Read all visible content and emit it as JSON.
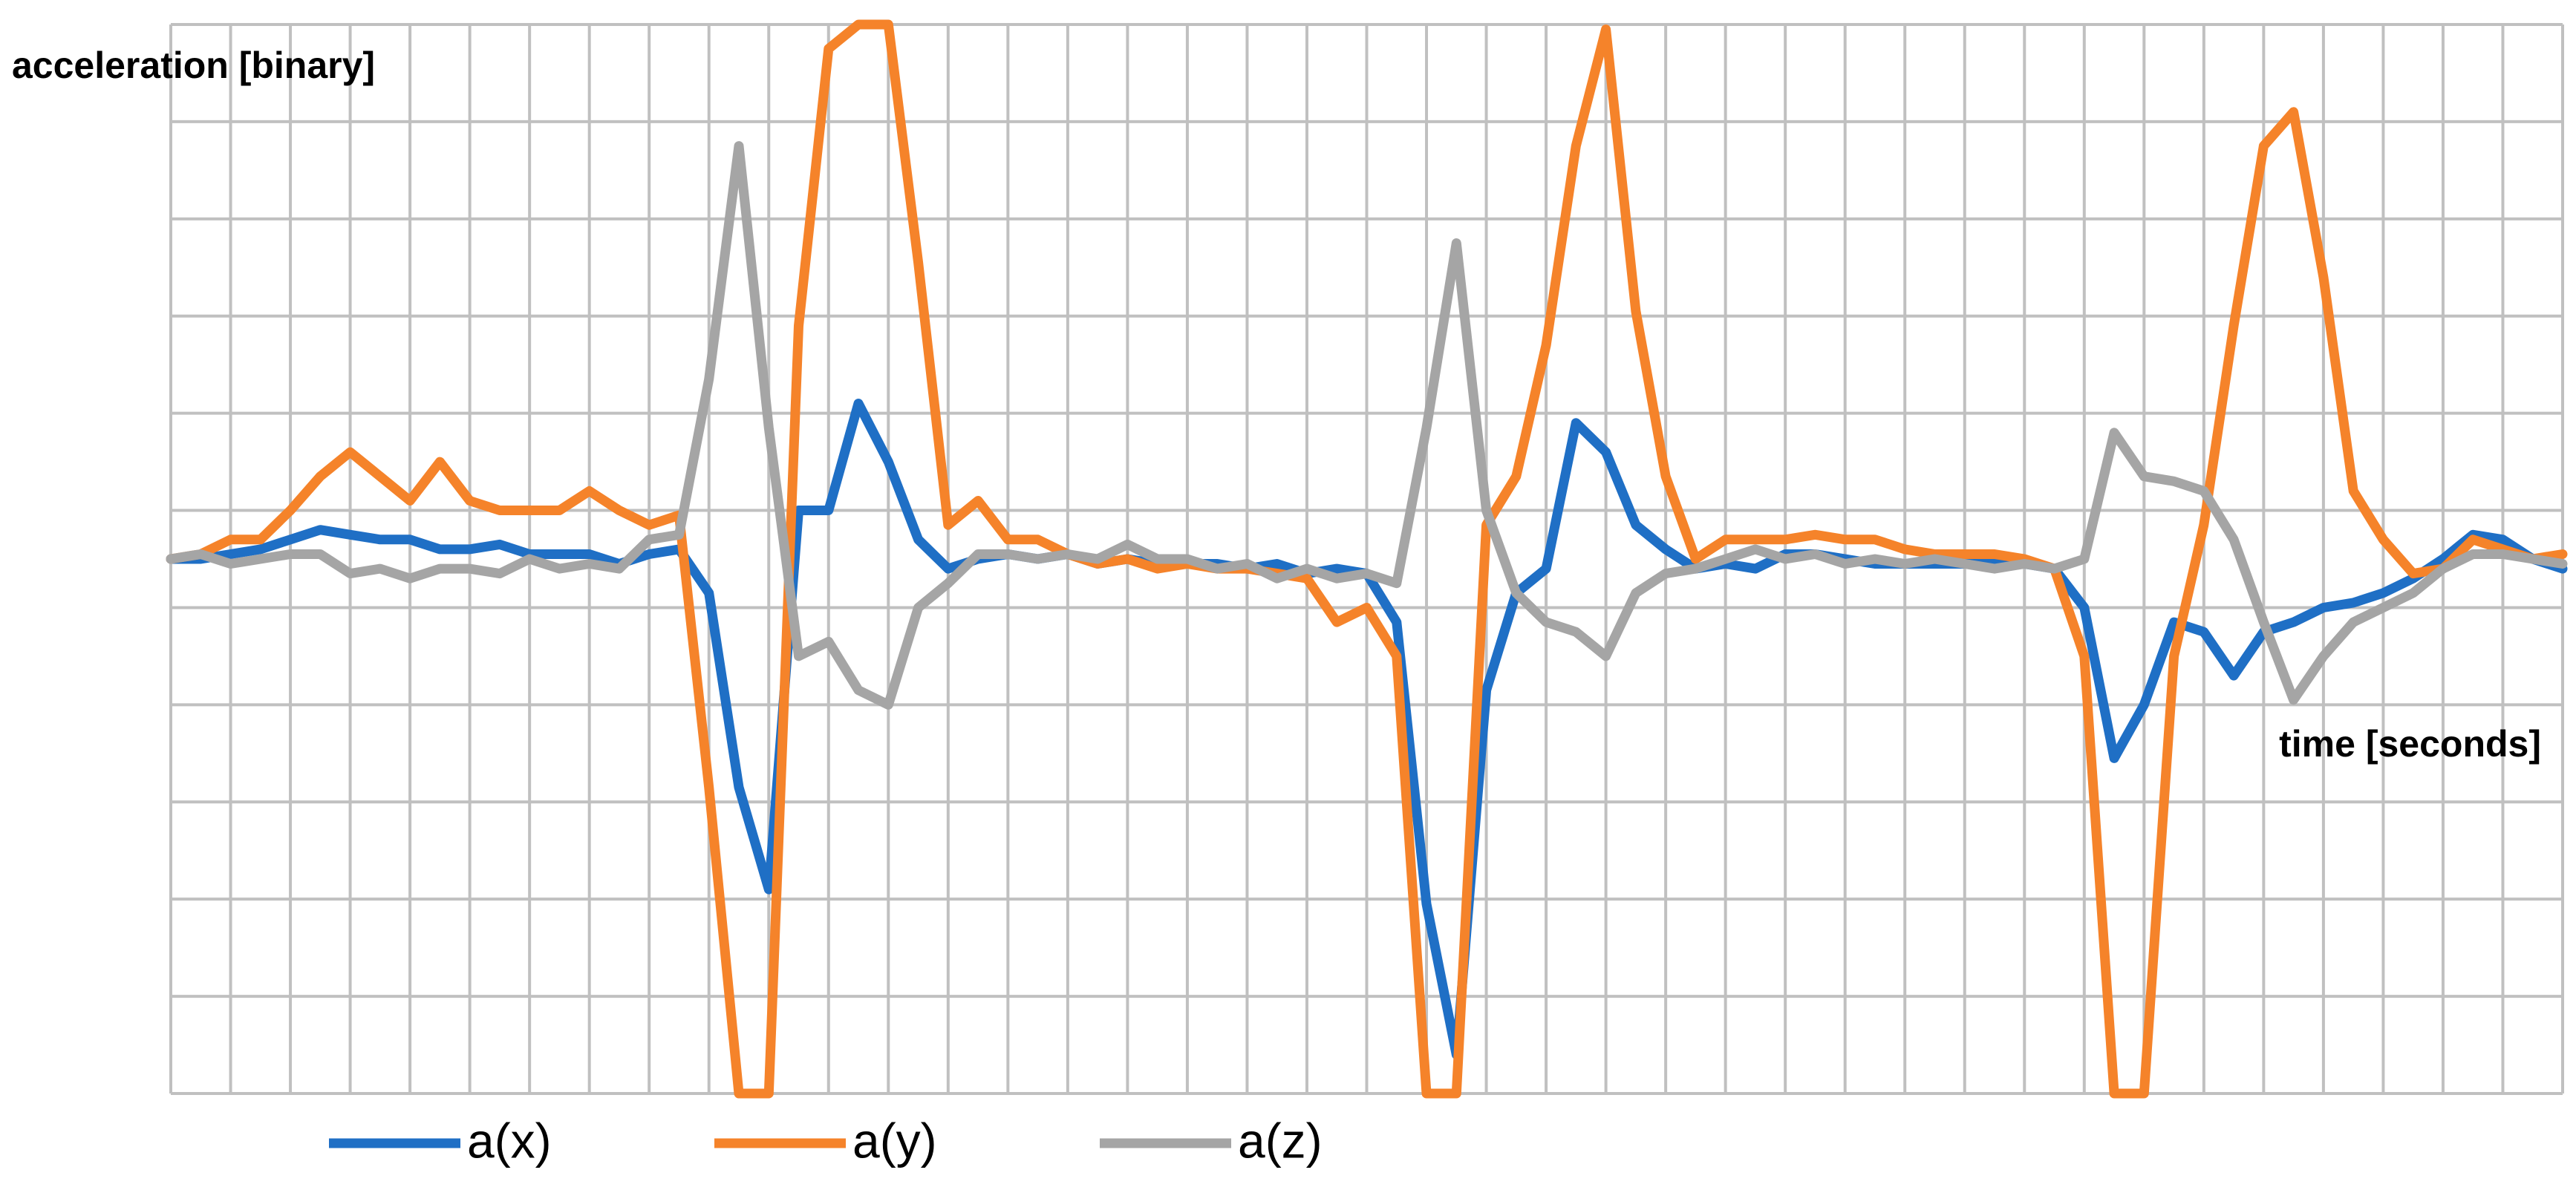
{
  "chart_data": {
    "type": "line",
    "y_label": "acceleration [binary]",
    "x_label": "time [seconds]",
    "x": [
      0,
      0.5,
      1,
      1.5,
      2,
      2.5,
      3,
      3.5,
      4,
      4.5,
      5,
      5.5,
      6,
      6.5,
      7,
      7.5,
      8,
      8.5,
      9,
      9.5,
      10,
      10.5,
      11,
      11.5,
      12,
      12.5,
      13,
      13.5,
      14,
      14.5,
      15,
      15.5,
      16,
      16.5,
      17,
      17.5,
      18,
      18.5,
      19,
      19.5,
      20,
      20.5,
      21,
      21.5,
      22,
      22.5,
      23,
      23.5,
      24,
      24.5,
      25,
      25.5,
      26,
      26.5,
      27,
      27.5,
      28,
      28.5,
      29,
      29.5,
      30,
      30.5,
      31,
      31.5,
      32,
      32.5,
      33,
      33.5,
      34,
      34.5,
      35,
      35.5,
      36,
      36.5,
      37,
      37.5,
      38,
      38.5,
      39,
      39.5,
      40
    ],
    "series": [
      {
        "name": "a(x)",
        "color": "#1f6fc5",
        "values": [
          5.5,
          5.5,
          5.55,
          5.6,
          5.7,
          5.8,
          5.75,
          5.7,
          5.7,
          5.6,
          5.6,
          5.65,
          5.55,
          5.55,
          5.55,
          5.45,
          5.55,
          5.6,
          5.15,
          3.15,
          2.1,
          6.0,
          6.0,
          7.1,
          6.5,
          5.7,
          5.4,
          5.5,
          5.55,
          5.5,
          5.55,
          5.45,
          5.5,
          5.45,
          5.45,
          5.45,
          5.4,
          5.45,
          5.35,
          5.4,
          5.35,
          4.85,
          1.95,
          0.4,
          4.15,
          5.15,
          5.4,
          6.9,
          6.6,
          5.85,
          5.6,
          5.4,
          5.45,
          5.4,
          5.55,
          5.55,
          5.5,
          5.45,
          5.45,
          5.45,
          5.45,
          5.5,
          5.45,
          5.4,
          5.0,
          3.45,
          4.0,
          4.85,
          4.75,
          4.3,
          4.75,
          4.85,
          5.0,
          5.05,
          5.15,
          5.3,
          5.5,
          5.75,
          5.7,
          5.5,
          5.4
        ]
      },
      {
        "name": "a(y)",
        "color": "#f5832a",
        "values": [
          5.5,
          5.55,
          5.7,
          5.7,
          6.0,
          6.35,
          6.6,
          6.35,
          6.1,
          6.5,
          6.1,
          6.0,
          6.0,
          6.0,
          6.2,
          6.0,
          5.85,
          5.95,
          3.15,
          0,
          0,
          7.9,
          10.75,
          11,
          11,
          8.55,
          5.85,
          6.1,
          5.7,
          5.7,
          5.55,
          5.45,
          5.5,
          5.4,
          5.45,
          5.4,
          5.4,
          5.35,
          5.3,
          4.85,
          5.0,
          4.5,
          0,
          0,
          5.85,
          6.35,
          7.7,
          9.75,
          10.95,
          8.05,
          6.35,
          5.5,
          5.7,
          5.7,
          5.7,
          5.75,
          5.7,
          5.7,
          5.6,
          5.55,
          5.55,
          5.55,
          5.5,
          5.4,
          4.5,
          0,
          0,
          4.5,
          5.85,
          7.9,
          9.75,
          10.1,
          8.4,
          6.2,
          5.7,
          5.35,
          5.4,
          5.7,
          5.6,
          5.5,
          5.55
        ]
      },
      {
        "name": "a(z)",
        "color": "#a5a5a5",
        "values": [
          5.5,
          5.55,
          5.45,
          5.5,
          5.55,
          5.55,
          5.35,
          5.4,
          5.3,
          5.4,
          5.4,
          5.35,
          5.5,
          5.4,
          5.45,
          5.4,
          5.7,
          5.75,
          7.35,
          9.75,
          6.85,
          4.5,
          4.65,
          4.15,
          4.0,
          5.0,
          5.25,
          5.55,
          5.55,
          5.5,
          5.55,
          5.5,
          5.65,
          5.5,
          5.5,
          5.4,
          5.45,
          5.3,
          5.4,
          5.3,
          5.35,
          5.25,
          6.85,
          8.75,
          6.0,
          5.15,
          4.85,
          4.75,
          4.5,
          5.15,
          5.35,
          5.4,
          5.5,
          5.6,
          5.5,
          5.55,
          5.45,
          5.5,
          5.45,
          5.5,
          5.45,
          5.4,
          5.45,
          5.4,
          5.5,
          6.8,
          6.35,
          6.3,
          6.2,
          5.7,
          4.85,
          4.05,
          4.5,
          4.85,
          5.0,
          5.15,
          5.4,
          5.55,
          5.55,
          5.5,
          5.45
        ]
      }
    ],
    "xlim": [
      0,
      40
    ],
    "ylim": [
      0,
      11
    ],
    "xticks": [
      0,
      1,
      2,
      3,
      4,
      5,
      6,
      7,
      8,
      9,
      10,
      11,
      12,
      13,
      14,
      15,
      16,
      17,
      18,
      19,
      20,
      21,
      22,
      23,
      24,
      25,
      26,
      27,
      28,
      29,
      30,
      31,
      32,
      33,
      34,
      35,
      36,
      37,
      38,
      39,
      40
    ],
    "yticks": [
      0,
      1,
      2,
      3,
      4,
      5,
      6,
      7,
      8,
      9,
      10,
      11
    ],
    "grid": true,
    "legend": "bottom"
  }
}
